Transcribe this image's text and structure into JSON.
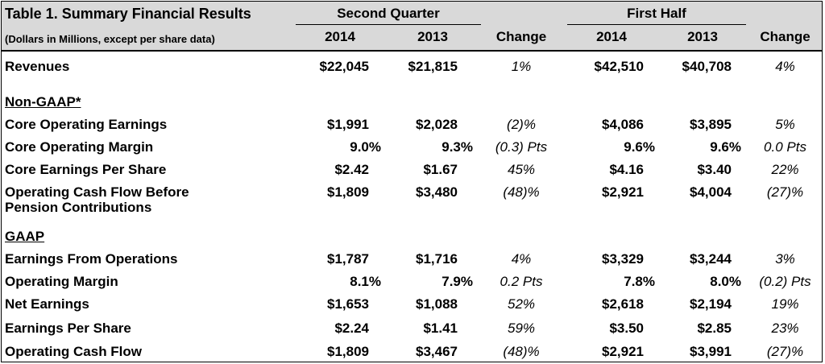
{
  "table": {
    "title": "Table 1.  Summary Financial Results",
    "subtitle": "(Dollars in Millions, except per share data)",
    "groups": {
      "q2": "Second Quarter",
      "h1": "First Half"
    },
    "cols": {
      "y1": "2014",
      "y2": "2013",
      "change": "Change"
    },
    "rows": {
      "revenues": {
        "label": "Revenues",
        "q2_2014": "$22,045",
        "q2_2013": "$21,815",
        "q2_chg": "1%",
        "h1_2014": "$42,510",
        "h1_2013": "$40,708",
        "h1_chg": "4%"
      },
      "nongaap_heading": "Non-GAAP*",
      "core_earnings": {
        "label": "Core Operating Earnings",
        "q2_2014": "$1,991",
        "q2_2013": "$2,028",
        "q2_chg": "(2)%",
        "h1_2014": "$4,086",
        "h1_2013": "$3,895",
        "h1_chg": "5%"
      },
      "core_margin": {
        "label": "Core Operating Margin",
        "q2_2014": "9.0%",
        "q2_2013": "9.3%",
        "q2_chg": "(0.3) Pts",
        "h1_2014": "9.6%",
        "h1_2013": "9.6%",
        "h1_chg": "0.0 Pts"
      },
      "core_eps": {
        "label": "Core Earnings Per Share",
        "q2_2014": "$2.42",
        "q2_2013": "$1.67",
        "q2_chg": "45%",
        "h1_2014": "$4.16",
        "h1_2013": "$3.40",
        "h1_chg": "22%"
      },
      "ocf_before": {
        "label1": "Operating Cash Flow Before",
        "label2": "Pension Contributions",
        "q2_2014": "$1,809",
        "q2_2013": "$3,480",
        "q2_chg": "(48)%",
        "h1_2014": "$2,921",
        "h1_2013": "$4,004",
        "h1_chg": "(27)%"
      },
      "gaap_heading": "GAAP",
      "eff": {
        "label": "Earnings From Operations",
        "q2_2014": "$1,787",
        "q2_2013": "$1,716",
        "q2_chg": "4%",
        "h1_2014": "$3,329",
        "h1_2013": "$3,244",
        "h1_chg": "3%"
      },
      "op_margin": {
        "label": "Operating Margin",
        "q2_2014": "8.1%",
        "q2_2013": "7.9%",
        "q2_chg": "0.2 Pts",
        "h1_2014": "7.8%",
        "h1_2013": "8.0%",
        "h1_chg": "(0.2) Pts"
      },
      "net": {
        "label": "Net Earnings",
        "q2_2014": "$1,653",
        "q2_2013": "$1,088",
        "q2_chg": "52%",
        "h1_2014": "$2,618",
        "h1_2013": "$2,194",
        "h1_chg": "19%"
      },
      "eps": {
        "label": "Earnings Per Share",
        "q2_2014": "$2.24",
        "q2_2013": "$1.41",
        "q2_chg": "59%",
        "h1_2014": "$3.50",
        "h1_2013": "$2.85",
        "h1_chg": "23%"
      },
      "ocf": {
        "label": "Operating Cash Flow",
        "q2_2014": "$1,809",
        "q2_2013": "$3,467",
        "q2_chg": "(48)%",
        "h1_2014": "$2,921",
        "h1_2013": "$3,991",
        "h1_chg": "(27)%"
      }
    }
  }
}
